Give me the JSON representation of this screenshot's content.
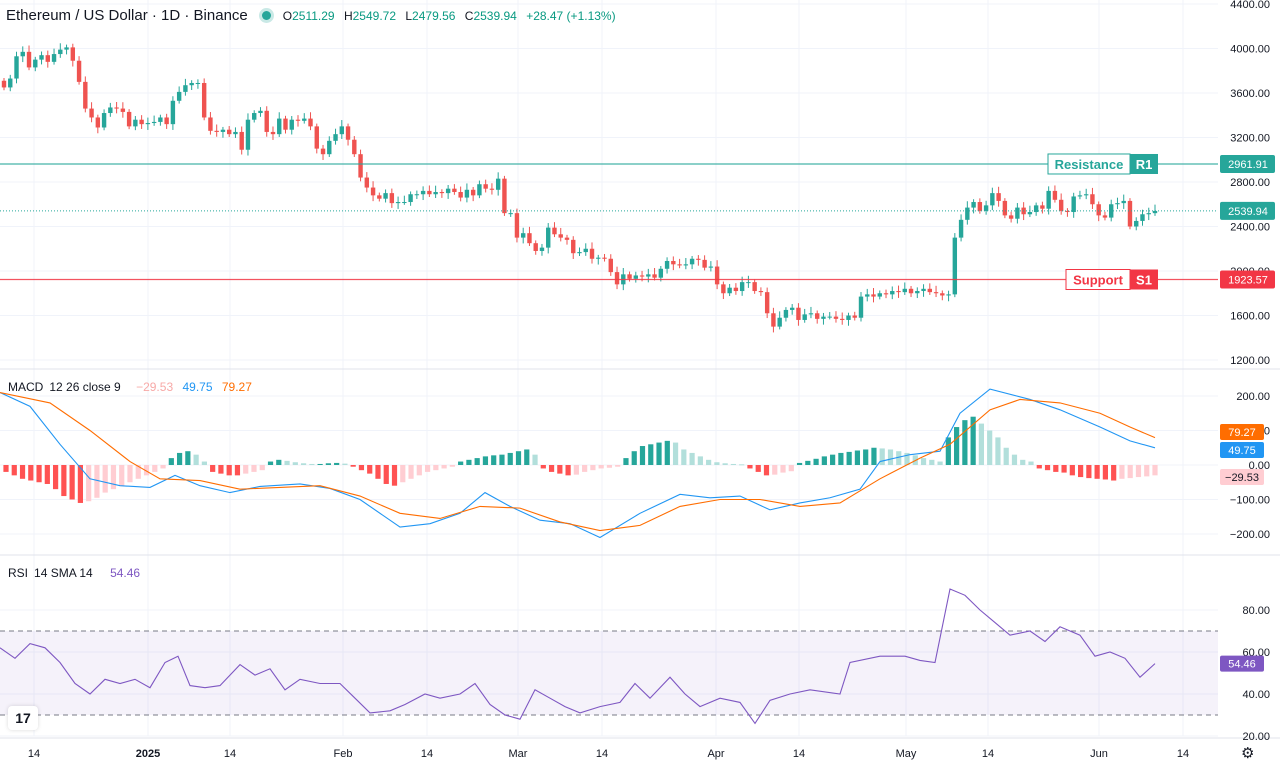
{
  "header": {
    "symbol": "Ethereum / US Dollar · 1D · Binance",
    "open_label": "O",
    "open": "2511.29",
    "high_label": "H",
    "high": "2549.72",
    "low_label": "L",
    "low": "2479.56",
    "close_label": "C",
    "close": "2539.94",
    "change": "+28.47 (+1.13%)"
  },
  "macd_legend": {
    "name": "MACD",
    "params": "12 26 close 9",
    "hist": "−29.53",
    "macd": "49.75",
    "signal": "79.27"
  },
  "rsi_legend": {
    "name": "RSI",
    "params": "14 SMA 14",
    "value": "54.46"
  },
  "colors": {
    "up": "#26a69a",
    "down": "#ef5350",
    "macd_line": "#2196f3",
    "signal_line": "#ff6d00",
    "rsi_line": "#7e57c2",
    "resistance": "#26a69a",
    "support": "#f23645"
  },
  "chart_data": [
    {
      "type": "candlestick",
      "title": "Ethereum / US Dollar · 1D · Binance",
      "y_ticks": [
        "4400.00",
        "4000.00",
        "3600.00",
        "3200.00",
        "2800.00",
        "2400.00",
        "2000.00",
        "1600.00",
        "1200.00"
      ],
      "ylim": [
        1200,
        4400
      ],
      "x_ticks": [
        "14",
        "2025",
        "14",
        "Feb",
        "14",
        "Mar",
        "14",
        "Apr",
        "14",
        "May",
        "14",
        "Jun",
        "14"
      ],
      "closes": [
        3650,
        3730,
        3930,
        3970,
        3830,
        3900,
        3940,
        3880,
        3950,
        3990,
        4010,
        3890,
        3700,
        3460,
        3380,
        3290,
        3420,
        3470,
        3460,
        3430,
        3300,
        3360,
        3320,
        3330,
        3340,
        3380,
        3320,
        3530,
        3610,
        3670,
        3690,
        3690,
        3380,
        3260,
        3250,
        3270,
        3230,
        3250,
        3090,
        3360,
        3420,
        3440,
        3250,
        3230,
        3370,
        3270,
        3360,
        3350,
        3370,
        3300,
        3100,
        3050,
        3170,
        3230,
        3300,
        3180,
        3050,
        2840,
        2750,
        2680,
        2650,
        2700,
        2610,
        2620,
        2620,
        2690,
        2690,
        2720,
        2690,
        2710,
        2700,
        2740,
        2710,
        2660,
        2730,
        2680,
        2780,
        2740,
        2730,
        2830,
        2520,
        2520,
        2300,
        2340,
        2250,
        2180,
        2210,
        2390,
        2330,
        2300,
        2280,
        2160,
        2170,
        2200,
        2110,
        2120,
        2110,
        1990,
        1880,
        1970,
        1930,
        1960,
        1950,
        1970,
        1940,
        2020,
        2090,
        2060,
        2050,
        2060,
        2110,
        2100,
        2030,
        2040,
        1880,
        1800,
        1850,
        1820,
        1900,
        1900,
        1820,
        1810,
        1620,
        1500,
        1580,
        1650,
        1670,
        1560,
        1610,
        1620,
        1570,
        1590,
        1590,
        1570,
        1560,
        1600,
        1580,
        1770,
        1790,
        1770,
        1800,
        1790,
        1820,
        1810,
        1840,
        1800,
        1820,
        1840,
        1810,
        1800,
        1780,
        1790,
        2300,
        2460,
        2570,
        2620,
        2540,
        2590,
        2700,
        2630,
        2500,
        2470,
        2570,
        2510,
        2530,
        2590,
        2560,
        2720,
        2640,
        2540,
        2530,
        2670,
        2680,
        2690,
        2600,
        2500,
        2480,
        2600,
        2610,
        2630,
        2400,
        2450,
        2510,
        2520,
        2540
      ],
      "current_price": "2539.94",
      "resistance": {
        "label": "Resistance",
        "tag": "R1",
        "value": 2961.91,
        "value_label": "2961.91"
      },
      "support": {
        "label": "Support",
        "tag": "S1",
        "value": 1923.57,
        "value_label": "1923.57"
      }
    },
    {
      "type": "line",
      "title": "MACD 12 26 close 9",
      "y_ticks": [
        "200.00",
        "100.00",
        "0.00",
        "−100.00",
        "−200.00"
      ],
      "ylim": [
        -220,
        220
      ],
      "macd_points": [
        [
          0,
          210
        ],
        [
          30,
          170
        ],
        [
          60,
          60
        ],
        [
          90,
          -40
        ],
        [
          120,
          -60
        ],
        [
          150,
          -65
        ],
        [
          175,
          -30
        ],
        [
          200,
          -60
        ],
        [
          230,
          -80
        ],
        [
          260,
          -62
        ],
        [
          300,
          -55
        ],
        [
          330,
          -68
        ],
        [
          360,
          -100
        ],
        [
          400,
          -180
        ],
        [
          430,
          -170
        ],
        [
          460,
          -140
        ],
        [
          485,
          -80
        ],
        [
          510,
          -120
        ],
        [
          540,
          -160
        ],
        [
          570,
          -170
        ],
        [
          600,
          -210
        ],
        [
          640,
          -140
        ],
        [
          680,
          -85
        ],
        [
          710,
          -95
        ],
        [
          740,
          -90
        ],
        [
          770,
          -130
        ],
        [
          800,
          -110
        ],
        [
          830,
          -95
        ],
        [
          860,
          -70
        ],
        [
          880,
          10
        ],
        [
          910,
          30
        ],
        [
          940,
          40
        ],
        [
          960,
          150
        ],
        [
          990,
          220
        ],
        [
          1030,
          190
        ],
        [
          1060,
          160
        ],
        [
          1100,
          110
        ],
        [
          1130,
          70
        ],
        [
          1155,
          49.75
        ]
      ],
      "signal_points": [
        [
          0,
          210
        ],
        [
          50,
          180
        ],
        [
          90,
          100
        ],
        [
          130,
          10
        ],
        [
          160,
          -40
        ],
        [
          200,
          -45
        ],
        [
          240,
          -70
        ],
        [
          280,
          -65
        ],
        [
          320,
          -60
        ],
        [
          360,
          -90
        ],
        [
          400,
          -140
        ],
        [
          440,
          -155
        ],
        [
          480,
          -120
        ],
        [
          520,
          -125
        ],
        [
          560,
          -165
        ],
        [
          600,
          -190
        ],
        [
          640,
          -175
        ],
        [
          680,
          -120
        ],
        [
          720,
          -100
        ],
        [
          760,
          -100
        ],
        [
          800,
          -120
        ],
        [
          840,
          -110
        ],
        [
          880,
          -40
        ],
        [
          920,
          20
        ],
        [
          950,
          60
        ],
        [
          990,
          160
        ],
        [
          1020,
          190
        ],
        [
          1060,
          180
        ],
        [
          1100,
          150
        ],
        [
          1130,
          110
        ],
        [
          1155,
          79.27
        ]
      ],
      "histogram": [
        -20,
        -30,
        -40,
        -45,
        -50,
        -55,
        -70,
        -90,
        -100,
        -110,
        -105,
        -95,
        -80,
        -70,
        -60,
        -50,
        -40,
        -30,
        -20,
        -10,
        20,
        35,
        40,
        30,
        10,
        -20,
        -25,
        -30,
        -30,
        -25,
        -20,
        -15,
        10,
        15,
        12,
        8,
        5,
        3,
        3,
        5,
        6,
        4,
        -5,
        -15,
        -25,
        -40,
        -55,
        -60,
        -50,
        -40,
        -30,
        -20,
        -15,
        -10,
        -5,
        10,
        15,
        20,
        25,
        28,
        30,
        35,
        40,
        45,
        30,
        -10,
        -20,
        -25,
        -30,
        -28,
        -20,
        -15,
        -10,
        -8,
        -5,
        20,
        40,
        55,
        60,
        65,
        70,
        65,
        45,
        35,
        25,
        15,
        8,
        5,
        3,
        2,
        -10,
        -20,
        -30,
        -28,
        -22,
        -18,
        6,
        12,
        18,
        25,
        30,
        35,
        38,
        42,
        45,
        50,
        48,
        45,
        40,
        35,
        28,
        20,
        15,
        10,
        80,
        110,
        130,
        140,
        120,
        100,
        80,
        50,
        30,
        15,
        10,
        -10,
        -15,
        -20,
        -22,
        -30,
        -35,
        -38,
        -40,
        -42,
        -45,
        -40,
        -38,
        -35,
        -33,
        -30
      ],
      "last_hist": "−29.53",
      "last_macd": "49.75",
      "last_signal": "79.27"
    },
    {
      "type": "line",
      "title": "RSI 14 SMA 14",
      "y_ticks": [
        "80.00",
        "60.00",
        "40.00",
        "20.00"
      ],
      "ylim": [
        20,
        90
      ],
      "bands": [
        30,
        70
      ],
      "rsi_points": [
        [
          0,
          62
        ],
        [
          15,
          57
        ],
        [
          30,
          64
        ],
        [
          45,
          62
        ],
        [
          60,
          55
        ],
        [
          75,
          45
        ],
        [
          90,
          40
        ],
        [
          105,
          47
        ],
        [
          120,
          45
        ],
        [
          135,
          47
        ],
        [
          150,
          43
        ],
        [
          165,
          55
        ],
        [
          178,
          58
        ],
        [
          190,
          44
        ],
        [
          205,
          43
        ],
        [
          220,
          44
        ],
        [
          240,
          54
        ],
        [
          255,
          49
        ],
        [
          270,
          52
        ],
        [
          285,
          42
        ],
        [
          300,
          47
        ],
        [
          320,
          45
        ],
        [
          340,
          45
        ],
        [
          355,
          38
        ],
        [
          370,
          31
        ],
        [
          390,
          32
        ],
        [
          405,
          35
        ],
        [
          425,
          40
        ],
        [
          440,
          38
        ],
        [
          460,
          40
        ],
        [
          475,
          45
        ],
        [
          490,
          35
        ],
        [
          505,
          30
        ],
        [
          520,
          28
        ],
        [
          535,
          42
        ],
        [
          550,
          38
        ],
        [
          565,
          34
        ],
        [
          580,
          31
        ],
        [
          600,
          34
        ],
        [
          620,
          36
        ],
        [
          635,
          45
        ],
        [
          650,
          38
        ],
        [
          670,
          48
        ],
        [
          685,
          40
        ],
        [
          700,
          34
        ],
        [
          720,
          38
        ],
        [
          740,
          36
        ],
        [
          755,
          26
        ],
        [
          770,
          37
        ],
        [
          790,
          40
        ],
        [
          810,
          42
        ],
        [
          840,
          40
        ],
        [
          850,
          55
        ],
        [
          880,
          58
        ],
        [
          905,
          58
        ],
        [
          920,
          56
        ],
        [
          935,
          55
        ],
        [
          950,
          90
        ],
        [
          965,
          87
        ],
        [
          980,
          80
        ],
        [
          995,
          74
        ],
        [
          1010,
          68
        ],
        [
          1030,
          70
        ],
        [
          1045,
          65
        ],
        [
          1060,
          72
        ],
        [
          1080,
          68
        ],
        [
          1095,
          58
        ],
        [
          1110,
          60
        ],
        [
          1125,
          57
        ],
        [
          1140,
          48
        ],
        [
          1155,
          54.46
        ]
      ],
      "last_rsi": "54.46"
    }
  ]
}
